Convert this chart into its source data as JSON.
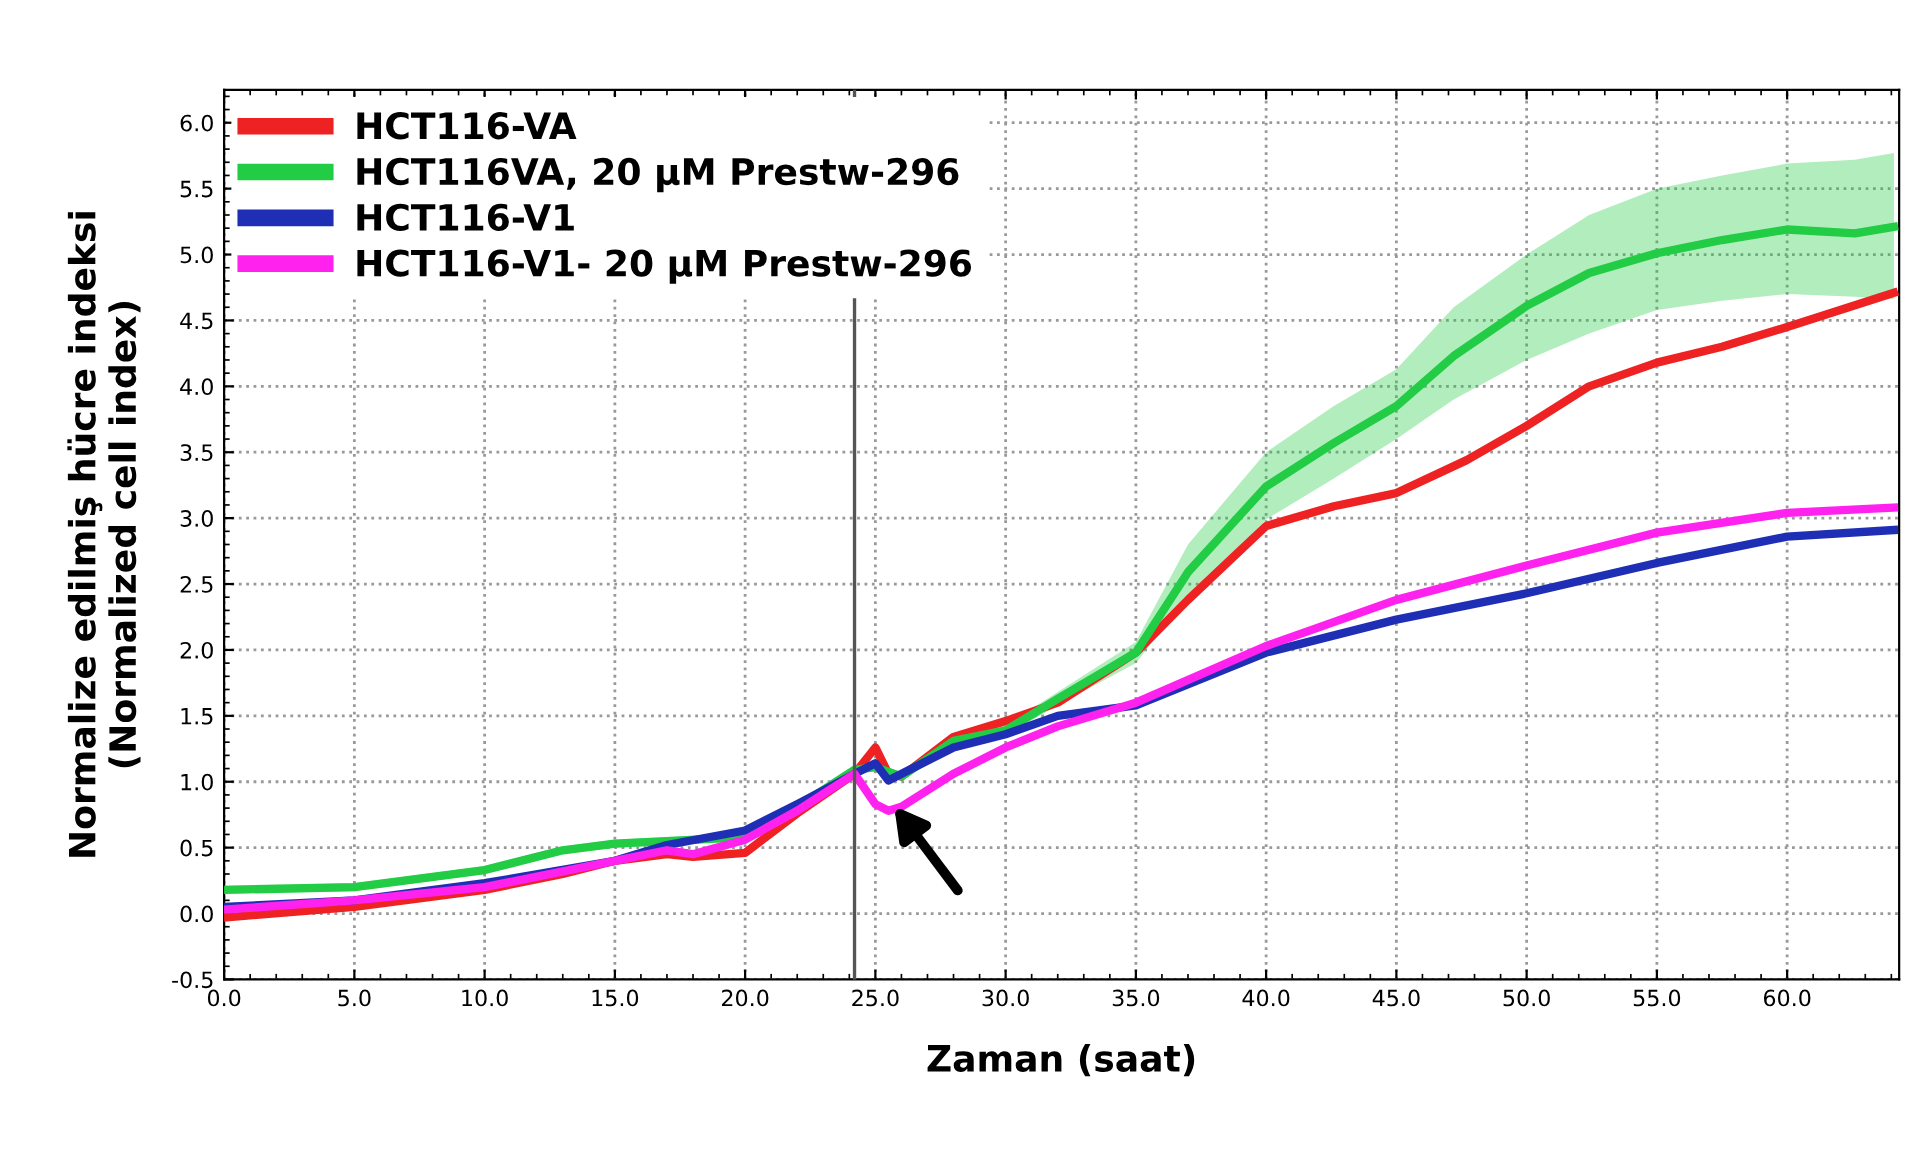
{
  "chart_data": {
    "type": "line",
    "xlabel": "Zaman (saat)",
    "ylabel": "Normalize edilmiş hücre indeksi\n(Normalized cell index)",
    "xlim": [
      0,
      64.3
    ],
    "ylim": [
      -0.5,
      6.25
    ],
    "xticks": [
      {
        "value": 0,
        "label": "0.0"
      },
      {
        "value": 5,
        "label": "5.0"
      },
      {
        "value": 10,
        "label": "10.0"
      },
      {
        "value": 15,
        "label": "15.0"
      },
      {
        "value": 20,
        "label": "20.0"
      },
      {
        "value": 25,
        "label": "25.0"
      },
      {
        "value": 30,
        "label": "30.0"
      },
      {
        "value": 35,
        "label": "35.0"
      },
      {
        "value": 40,
        "label": "40.0"
      },
      {
        "value": 45,
        "label": "45.0"
      },
      {
        "value": 50,
        "label": "50.0"
      },
      {
        "value": 55,
        "label": "55.0"
      },
      {
        "value": 60,
        "label": "60.0"
      }
    ],
    "yticks": [
      {
        "value": -0.5,
        "label": "-0.5"
      },
      {
        "value": 0,
        "label": "0.0"
      },
      {
        "value": 0.5,
        "label": "0.5"
      },
      {
        "value": 1,
        "label": "1.0"
      },
      {
        "value": 1.5,
        "label": "1.5"
      },
      {
        "value": 2,
        "label": "2.0"
      },
      {
        "value": 2.5,
        "label": "2.5"
      },
      {
        "value": 3,
        "label": "3.0"
      },
      {
        "value": 3.5,
        "label": "3.5"
      },
      {
        "value": 4,
        "label": "4.0"
      },
      {
        "value": 4.5,
        "label": "4.5"
      },
      {
        "value": 5,
        "label": "5.0"
      },
      {
        "value": 5.5,
        "label": "5.5"
      },
      {
        "value": 6,
        "label": "6.0"
      }
    ],
    "grid": true,
    "legend": "top left",
    "marker": "none",
    "line_style": "solid",
    "ref_lines": [
      {
        "axis": "x",
        "value": 24.2,
        "color": "#555555"
      }
    ],
    "series": [
      {
        "name": "HCT116-VA",
        "color": "#ee2222",
        "x": [
          0,
          5,
          10,
          13,
          15,
          17,
          18,
          20,
          22,
          24.2,
          25,
          25.5,
          26,
          28,
          30,
          32,
          35,
          37,
          40,
          42.6,
          45,
          47.7,
          50,
          52.4,
          55,
          57.5,
          60,
          64.1
        ],
        "values": [
          -0.03,
          0.05,
          0.18,
          0.3,
          0.4,
          0.45,
          0.43,
          0.46,
          0.76,
          1.06,
          1.26,
          1.06,
          1.04,
          1.34,
          1.46,
          1.6,
          1.98,
          2.38,
          2.94,
          3.09,
          3.19,
          3.44,
          3.7,
          4.0,
          4.18,
          4.3,
          4.45,
          4.71
        ]
      },
      {
        "name": "HCT116VA, 20 µM Prestw-296",
        "color": "#22cc44",
        "x": [
          0,
          5,
          10,
          13,
          15,
          17,
          20,
          22,
          24.2,
          25,
          26,
          28,
          30,
          32,
          35,
          37,
          40,
          42.6,
          45,
          47.2,
          50,
          52.4,
          55,
          57.5,
          60,
          62.6,
          64.1
        ],
        "values": [
          0.18,
          0.2,
          0.33,
          0.48,
          0.53,
          0.55,
          0.58,
          0.81,
          1.09,
          1.11,
          1.04,
          1.31,
          1.39,
          1.63,
          1.98,
          2.59,
          3.24,
          3.57,
          3.85,
          4.23,
          4.61,
          4.86,
          5.01,
          5.11,
          5.19,
          5.16,
          5.21
        ],
        "lower": [
          0.15,
          0.17,
          0.3,
          0.45,
          0.5,
          0.52,
          0.55,
          0.78,
          1.06,
          1.08,
          1.01,
          1.27,
          1.35,
          1.58,
          1.9,
          2.4,
          2.99,
          3.3,
          3.6,
          3.9,
          4.2,
          4.4,
          4.58,
          4.65,
          4.7,
          4.68,
          4.66
        ],
        "upper": [
          0.21,
          0.23,
          0.36,
          0.51,
          0.56,
          0.58,
          0.61,
          0.84,
          1.12,
          1.14,
          1.07,
          1.35,
          1.43,
          1.68,
          2.06,
          2.8,
          3.5,
          3.85,
          4.13,
          4.6,
          5.0,
          5.3,
          5.5,
          5.6,
          5.69,
          5.72,
          5.77
        ]
      },
      {
        "name": "HCT116-V1",
        "color": "#1f2fb5",
        "x": [
          0,
          5,
          10,
          15,
          17,
          20,
          22,
          24.2,
          25,
          25.5,
          28,
          30,
          32,
          35,
          40,
          45,
          50,
          55,
          60,
          64.1
        ],
        "values": [
          0.05,
          0.1,
          0.23,
          0.4,
          0.52,
          0.63,
          0.83,
          1.06,
          1.14,
          1.01,
          1.26,
          1.36,
          1.5,
          1.58,
          1.98,
          2.23,
          2.43,
          2.66,
          2.86,
          2.91
        ]
      },
      {
        "name": "HCT116-V1- 20 µM Prestw-296",
        "color": "#ff22ee",
        "x": [
          0,
          5,
          10,
          15,
          17,
          18,
          20,
          22,
          24.2,
          25,
          25.5,
          26,
          28,
          30,
          32,
          35,
          40,
          45,
          50,
          55,
          60,
          64.1
        ],
        "values": [
          0.03,
          0.1,
          0.2,
          0.4,
          0.48,
          0.45,
          0.56,
          0.78,
          1.06,
          0.83,
          0.78,
          0.81,
          1.06,
          1.26,
          1.42,
          1.6,
          2.03,
          2.38,
          2.64,
          2.89,
          3.04,
          3.08
        ]
      }
    ]
  }
}
